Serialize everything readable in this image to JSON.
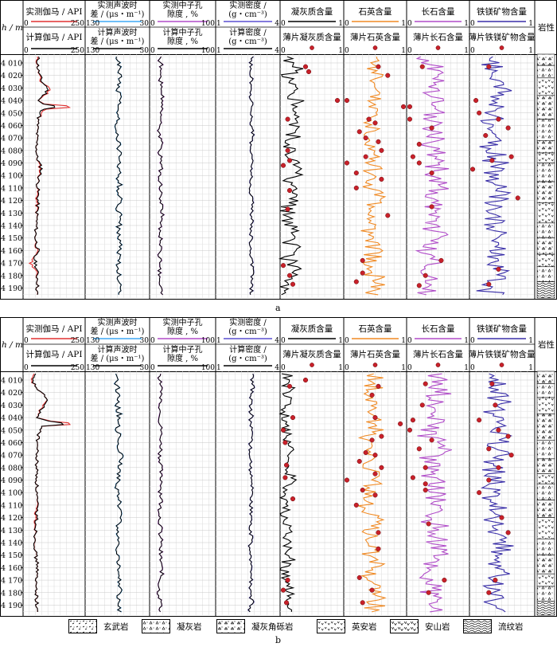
{
  "depth_axis": {
    "title": "h / m",
    "ticks": [
      4010,
      4020,
      4030,
      4040,
      4050,
      4060,
      4070,
      4080,
      4090,
      4100,
      4110,
      4120,
      4130,
      4140,
      4150,
      4160,
      4170,
      4180,
      4190
    ],
    "range": [
      4003,
      4198
    ]
  },
  "lithology_header": "岩性",
  "tracks": [
    {
      "top_label": "实测伽马 / API",
      "top_color": "#e03030",
      "top_min": "0",
      "top_max": "250",
      "bottom_label": "计算伽马 / API",
      "bottom_color": "#000000",
      "bottom_min": "0",
      "bottom_max": "250",
      "bottom_suffix": ""
    },
    {
      "top_label": "实测声波时差 / (μs・m⁻¹)",
      "top_line1": "实测声波时",
      "top_line2": "差 / (μs・m⁻¹)",
      "top_color": "#3fa9f5",
      "top_min": "130",
      "top_max": "30",
      "bottom_line1": "计算声波时",
      "bottom_line2": "差 / (μs・m⁻¹)",
      "bottom_color": "#000000",
      "bottom_min": "130",
      "bottom_max": "30"
    },
    {
      "top_line1": "实测中子孔",
      "top_line2": "隙度 , %",
      "top_color": "#b04cc8",
      "top_min": "0",
      "top_max": "100",
      "bottom_line1": "计算中子孔",
      "bottom_line2": "隙度 , %",
      "bottom_color": "#000000",
      "bottom_min": "0",
      "bottom_max": "100"
    },
    {
      "top_line1": "实测密度 /",
      "top_line2": "(g・cm⁻³)",
      "top_color": "#5a4fd0",
      "top_min": "1",
      "top_max": "4",
      "bottom_line1": "计算密度 /",
      "bottom_line2": "(g・cm⁻³)",
      "bottom_color": "#000000",
      "bottom_min": "1",
      "bottom_max": "4"
    },
    {
      "top_label": "凝灰质含量",
      "top_color": "#000000",
      "top_min": "0",
      "top_max": "1",
      "bottom_label": "薄片凝灰质含量",
      "bottom_min": "0",
      "bottom_max": "1"
    },
    {
      "top_label": "石英含量",
      "top_color": "#f08a24",
      "top_min": "0",
      "top_max": "1",
      "bottom_label": "薄片石英含量",
      "bottom_min": "0",
      "bottom_max": "1"
    },
    {
      "top_label": "长石含量",
      "top_color": "#b04cc8",
      "top_min": "0",
      "top_max": "1",
      "bottom_label": "薄片长石含量",
      "bottom_min": "0",
      "bottom_max": "1"
    },
    {
      "top_label": "铁镁矿物含量",
      "top_color": "#3a2fa8",
      "top_min": "0",
      "top_max": "1",
      "bottom_label": "薄片铁镁矿物含量",
      "bottom_min": "0",
      "bottom_max": "1"
    }
  ],
  "panels": [
    {
      "label": "a"
    },
    {
      "label": "b"
    }
  ],
  "legend": [
    {
      "name": "玄武岩",
      "pattern": "basalt"
    },
    {
      "name": "凝灰岩",
      "pattern": "tuff"
    },
    {
      "name": "凝灰角砾岩",
      "pattern": "breccia"
    },
    {
      "name": "英安岩",
      "pattern": "dacite"
    },
    {
      "name": "安山岩",
      "pattern": "andesite"
    },
    {
      "name": "流纹岩",
      "pattern": "rhyolite"
    }
  ],
  "chart_data": {
    "type": "line",
    "y_axis": {
      "title": "h / m",
      "range": [
        4003,
        4198
      ],
      "inverted": true
    },
    "panels": [
      {
        "label": "a",
        "gamma_measured": [
          [
            4005,
            55
          ],
          [
            4015,
            60
          ],
          [
            4025,
            70
          ],
          [
            4030,
            110
          ],
          [
            4035,
            95
          ],
          [
            4040,
            60
          ],
          [
            4043,
            85
          ],
          [
            4045,
            230
          ],
          [
            4047,
            90
          ],
          [
            4055,
            60
          ],
          [
            4070,
            55
          ],
          [
            4085,
            55
          ],
          [
            4095,
            70
          ],
          [
            4105,
            60
          ],
          [
            4120,
            55
          ],
          [
            4135,
            55
          ],
          [
            4150,
            50
          ],
          [
            4160,
            55
          ],
          [
            4165,
            45
          ],
          [
            4170,
            30
          ],
          [
            4175,
            50
          ],
          [
            4185,
            60
          ],
          [
            4195,
            55
          ]
        ],
        "gamma_calc": [
          [
            4005,
            60
          ],
          [
            4015,
            60
          ],
          [
            4025,
            75
          ],
          [
            4030,
            100
          ],
          [
            4035,
            90
          ],
          [
            4040,
            60
          ],
          [
            4043,
            80
          ],
          [
            4045,
            150
          ],
          [
            4047,
            80
          ],
          [
            4055,
            60
          ],
          [
            4070,
            55
          ],
          [
            4085,
            55
          ],
          [
            4095,
            75
          ],
          [
            4105,
            60
          ],
          [
            4120,
            60
          ],
          [
            4135,
            55
          ],
          [
            4150,
            50
          ],
          [
            4160,
            60
          ],
          [
            4165,
            45
          ],
          [
            4170,
            50
          ],
          [
            4175,
            55
          ],
          [
            4185,
            60
          ],
          [
            4195,
            55
          ]
        ],
        "thin_section_tuff": [
          [
            4013,
            0.4
          ],
          [
            4017,
            0.45
          ],
          [
            4040,
            0.9
          ],
          [
            4055,
            0.12
          ],
          [
            4080,
            0.12
          ],
          [
            4088,
            0.15
          ],
          [
            4092,
            0.05
          ],
          [
            4112,
            0.15
          ],
          [
            4127,
            0.12
          ],
          [
            4172,
            0.05
          ],
          [
            4180,
            0.15
          ],
          [
            4187,
            0.2
          ]
        ],
        "thin_section_quartz": [
          [
            4013,
            0.55
          ],
          [
            4020,
            0.7
          ],
          [
            4040,
            0.05
          ],
          [
            4045,
            0.95
          ],
          [
            4055,
            0.4
          ],
          [
            4058,
            0.5
          ],
          [
            4065,
            0.25
          ],
          [
            4070,
            0.35
          ],
          [
            4073,
            0.55
          ],
          [
            4080,
            0.6
          ],
          [
            4085,
            0.35
          ],
          [
            4090,
            0.05
          ],
          [
            4098,
            0.2
          ],
          [
            4103,
            0.6
          ],
          [
            4110,
            0.2
          ],
          [
            4132,
            0.7
          ],
          [
            4168,
            0.3
          ],
          [
            4178,
            0.3
          ],
          [
            4185,
            0.2
          ]
        ],
        "thin_section_feldspar": [
          [
            4013,
            0.25
          ],
          [
            4045,
            0.05
          ],
          [
            4055,
            0.05
          ],
          [
            4062,
            0.4
          ],
          [
            4075,
            0.2
          ],
          [
            4085,
            0.1
          ],
          [
            4090,
            0.2
          ],
          [
            4098,
            0.4
          ],
          [
            4125,
            0.4
          ],
          [
            4168,
            0.55
          ],
          [
            4180,
            0.3
          ],
          [
            4188,
            0.2
          ]
        ],
        "thin_section_mafic": [
          [
            4013,
            0.3
          ],
          [
            4040,
            0.1
          ],
          [
            4050,
            0.15
          ],
          [
            4055,
            0.45
          ],
          [
            4062,
            0.6
          ],
          [
            4068,
            0.25
          ],
          [
            4085,
            0.65
          ],
          [
            4088,
            0.35
          ],
          [
            4095,
            0.05
          ],
          [
            4118,
            0.75
          ],
          [
            4175,
            0.45
          ],
          [
            4187,
            0.3
          ]
        ]
      },
      {
        "label": "b",
        "gamma_measured": [
          [
            4005,
            40
          ],
          [
            4010,
            30
          ],
          [
            4015,
            50
          ],
          [
            4020,
            70
          ],
          [
            4025,
            100
          ],
          [
            4030,
            80
          ],
          [
            4040,
            55
          ],
          [
            4043,
            110
          ],
          [
            4045,
            230
          ],
          [
            4047,
            80
          ],
          [
            4055,
            60
          ],
          [
            4070,
            55
          ],
          [
            4090,
            55
          ],
          [
            4105,
            55
          ],
          [
            4120,
            50
          ],
          [
            4135,
            50
          ],
          [
            4150,
            50
          ],
          [
            4160,
            60
          ],
          [
            4170,
            50
          ],
          [
            4180,
            55
          ],
          [
            4195,
            55
          ]
        ],
        "gamma_calc": [
          [
            4005,
            45
          ],
          [
            4010,
            35
          ],
          [
            4015,
            50
          ],
          [
            4020,
            70
          ],
          [
            4025,
            100
          ],
          [
            4030,
            85
          ],
          [
            4040,
            55
          ],
          [
            4043,
            100
          ],
          [
            4045,
            190
          ],
          [
            4047,
            80
          ],
          [
            4055,
            60
          ],
          [
            4070,
            55
          ],
          [
            4090,
            55
          ],
          [
            4105,
            55
          ],
          [
            4120,
            55
          ],
          [
            4135,
            50
          ],
          [
            4150,
            50
          ],
          [
            4160,
            60
          ],
          [
            4170,
            50
          ],
          [
            4180,
            55
          ],
          [
            4195,
            55
          ]
        ],
        "thin_section_tuff": [
          [
            4010,
            0.4
          ],
          [
            4015,
            0.15
          ],
          [
            4040,
            0.2
          ],
          [
            4050,
            0.05
          ],
          [
            4060,
            0.08
          ],
          [
            4078,
            0.1
          ],
          [
            4088,
            0.08
          ],
          [
            4105,
            0.2
          ],
          [
            4170,
            0.12
          ],
          [
            4178,
            0.05
          ],
          [
            4188,
            0.1
          ]
        ],
        "thin_section_quartz": [
          [
            4015,
            0.55
          ],
          [
            4022,
            0.45
          ],
          [
            4040,
            0.5
          ],
          [
            4045,
            0.9
          ],
          [
            4055,
            0.6
          ],
          [
            4058,
            0.45
          ],
          [
            4068,
            0.35
          ],
          [
            4070,
            0.5
          ],
          [
            4075,
            0.25
          ],
          [
            4080,
            0.6
          ],
          [
            4085,
            0.5
          ],
          [
            4090,
            0.05
          ],
          [
            4098,
            0.3
          ],
          [
            4102,
            0.5
          ],
          [
            4110,
            0.2
          ],
          [
            4132,
            0.55
          ],
          [
            4145,
            0.55
          ],
          [
            4168,
            0.25
          ],
          [
            4178,
            0.45
          ],
          [
            4188,
            0.3
          ]
        ],
        "thin_section_feldspar": [
          [
            4013,
            0.3
          ],
          [
            4030,
            0.25
          ],
          [
            4042,
            0.1
          ],
          [
            4050,
            0.05
          ],
          [
            4058,
            0.4
          ],
          [
            4065,
            0.2
          ],
          [
            4080,
            0.3
          ],
          [
            4088,
            0.1
          ],
          [
            4093,
            0.3
          ],
          [
            4098,
            0.3
          ],
          [
            4125,
            0.35
          ],
          [
            4170,
            0.6
          ],
          [
            4180,
            0.35
          ]
        ],
        "thin_section_mafic": [
          [
            4013,
            0.35
          ],
          [
            4030,
            0.4
          ],
          [
            4042,
            0.15
          ],
          [
            4050,
            0.45
          ],
          [
            4055,
            0.6
          ],
          [
            4065,
            0.3
          ],
          [
            4070,
            0.65
          ],
          [
            4080,
            0.45
          ],
          [
            4090,
            0.3
          ],
          [
            4100,
            0.15
          ],
          [
            4120,
            0.5
          ],
          [
            4132,
            0.6
          ],
          [
            4170,
            0.4
          ],
          [
            4180,
            0.3
          ]
        ]
      }
    ]
  }
}
